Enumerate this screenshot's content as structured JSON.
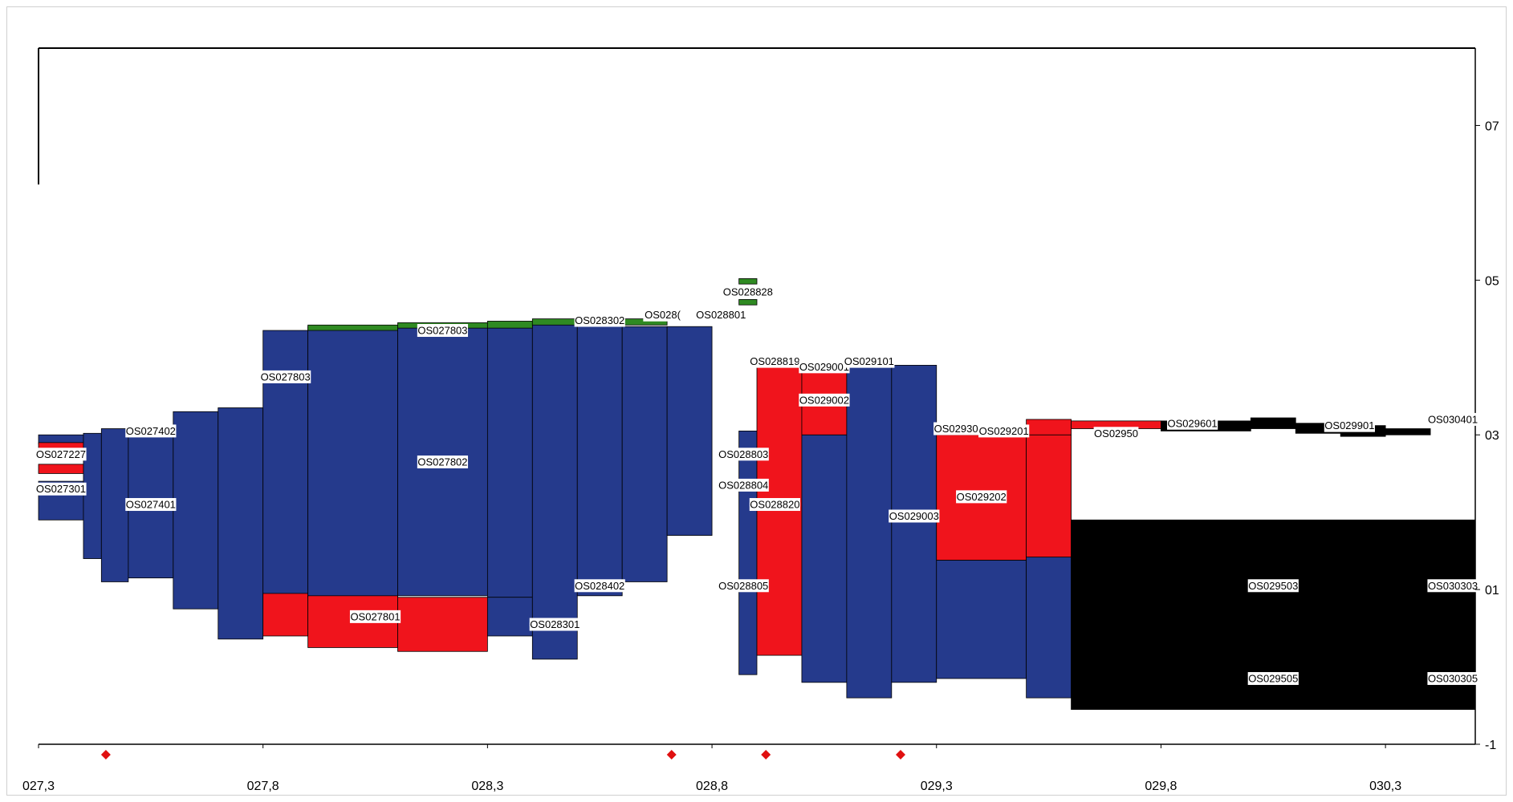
{
  "colors": {
    "blue": "#253a8c",
    "red": "#f0141c",
    "green": "#2f8a22",
    "black": "#000000",
    "marker": "#e01010"
  },
  "x_axis": {
    "min": 27.3,
    "max": 30.5,
    "ticks": [
      "027,3",
      "027,8",
      "028,3",
      "028,8",
      "029,3",
      "029,8",
      "030,3"
    ],
    "tick_values": [
      27.3,
      27.8,
      28.3,
      28.8,
      29.3,
      29.8,
      30.3
    ]
  },
  "y_axis": {
    "min": -1,
    "max": 8,
    "ticks": [
      "07",
      "05",
      "03",
      "01",
      "-1"
    ],
    "tick_values": [
      7,
      5,
      3,
      1,
      -1
    ]
  },
  "markers": [
    27.45,
    28.71,
    28.92,
    29.22
  ],
  "segments": [
    {
      "x1": 27.3,
      "x2": 27.4,
      "y1": 2.88,
      "y2": 3.0,
      "color": "blue"
    },
    {
      "x1": 27.3,
      "x2": 27.4,
      "y1": 2.7,
      "y2": 2.9,
      "color": "red"
    },
    {
      "x1": 27.3,
      "x2": 27.4,
      "y1": 2.5,
      "y2": 2.62,
      "color": "red"
    },
    {
      "x1": 27.3,
      "x2": 27.4,
      "y1": 1.9,
      "y2": 2.4,
      "color": "blue"
    },
    {
      "x1": 27.4,
      "x2": 27.44,
      "y1": 1.4,
      "y2": 3.02,
      "color": "blue"
    },
    {
      "x1": 27.44,
      "x2": 27.5,
      "y1": 1.1,
      "y2": 3.08,
      "color": "blue"
    },
    {
      "x1": 27.5,
      "x2": 27.6,
      "y1": 1.15,
      "y2": 3.08,
      "color": "blue"
    },
    {
      "x1": 27.6,
      "x2": 27.7,
      "y1": 0.75,
      "y2": 3.3,
      "color": "blue"
    },
    {
      "x1": 27.7,
      "x2": 27.8,
      "y1": 0.36,
      "y2": 3.35,
      "color": "blue"
    },
    {
      "x1": 27.8,
      "x2": 27.9,
      "y1": 0.75,
      "y2": 4.35,
      "color": "blue"
    },
    {
      "x1": 27.8,
      "x2": 27.9,
      "y1": 0.4,
      "y2": 0.95,
      "color": "red"
    },
    {
      "x1": 27.9,
      "x2": 28.1,
      "y1": 0.9,
      "y2": 4.4,
      "color": "blue"
    },
    {
      "x1": 27.9,
      "x2": 28.1,
      "y1": 0.25,
      "y2": 0.92,
      "color": "red"
    },
    {
      "x1": 28.1,
      "x2": 28.3,
      "y1": 0.92,
      "y2": 4.4,
      "color": "blue"
    },
    {
      "x1": 28.1,
      "x2": 28.3,
      "y1": 0.2,
      "y2": 0.9,
      "color": "red"
    },
    {
      "x1": 28.3,
      "x2": 28.4,
      "y1": 0.9,
      "y2": 4.45,
      "color": "blue"
    },
    {
      "x1": 28.3,
      "x2": 28.4,
      "y1": 0.4,
      "y2": 0.9,
      "color": "blue"
    },
    {
      "x1": 28.4,
      "x2": 28.5,
      "y1": 0.1,
      "y2": 4.45,
      "color": "blue"
    },
    {
      "x1": 28.5,
      "x2": 28.6,
      "y1": 0.92,
      "y2": 4.45,
      "color": "blue"
    },
    {
      "x1": 28.6,
      "x2": 28.7,
      "y1": 1.1,
      "y2": 4.4,
      "color": "blue"
    },
    {
      "x1": 28.7,
      "x2": 28.8,
      "y1": 1.7,
      "y2": 4.4,
      "color": "blue"
    },
    {
      "x1": 27.9,
      "x2": 28.1,
      "y1": 4.35,
      "y2": 4.42,
      "color": "green"
    },
    {
      "x1": 28.1,
      "x2": 28.3,
      "y1": 4.38,
      "y2": 4.45,
      "color": "green"
    },
    {
      "x1": 28.3,
      "x2": 28.4,
      "y1": 4.38,
      "y2": 4.47,
      "color": "green"
    },
    {
      "x1": 28.4,
      "x2": 28.7,
      "y1": 4.42,
      "y2": 4.5,
      "color": "green"
    },
    {
      "x1": 28.86,
      "x2": 28.9,
      "y1": 4.95,
      "y2": 5.02,
      "color": "green"
    },
    {
      "x1": 28.86,
      "x2": 28.9,
      "y1": 4.68,
      "y2": 4.75,
      "color": "green"
    },
    {
      "x1": 28.86,
      "x2": 28.9,
      "y1": -0.1,
      "y2": 3.05,
      "color": "blue"
    },
    {
      "x1": 28.9,
      "x2": 29.0,
      "y1": 0.15,
      "y2": 3.95,
      "color": "red"
    },
    {
      "x1": 29.0,
      "x2": 29.1,
      "y1": -0.2,
      "y2": 3.0,
      "color": "blue"
    },
    {
      "x1": 29.0,
      "x2": 29.1,
      "y1": 3.0,
      "y2": 3.95,
      "color": "red"
    },
    {
      "x1": 29.1,
      "x2": 29.2,
      "y1": -0.4,
      "y2": 3.9,
      "color": "blue"
    },
    {
      "x1": 29.2,
      "x2": 29.3,
      "y1": -0.2,
      "y2": 3.9,
      "color": "blue"
    },
    {
      "x1": 29.3,
      "x2": 29.5,
      "y1": -0.15,
      "y2": 1.38,
      "color": "blue"
    },
    {
      "x1": 29.3,
      "x2": 29.5,
      "y1": 1.38,
      "y2": 3.0,
      "color": "red"
    },
    {
      "x1": 29.5,
      "x2": 29.6,
      "y1": -0.4,
      "y2": 1.42,
      "color": "blue"
    },
    {
      "x1": 29.5,
      "x2": 29.6,
      "y1": 1.42,
      "y2": 3.0,
      "color": "red"
    },
    {
      "x1": 29.5,
      "x2": 29.6,
      "y1": 3.0,
      "y2": 3.2,
      "color": "red"
    },
    {
      "x1": 29.6,
      "x2": 29.8,
      "y1": 3.08,
      "y2": 3.18,
      "color": "red"
    },
    {
      "x1": 29.8,
      "x2": 30.0,
      "y1": 3.05,
      "y2": 3.18,
      "color": "black"
    },
    {
      "x1": 30.0,
      "x2": 30.1,
      "y1": 3.08,
      "y2": 3.22,
      "color": "black"
    },
    {
      "x1": 30.1,
      "x2": 30.2,
      "y1": 3.02,
      "y2": 3.15,
      "color": "black"
    },
    {
      "x1": 30.2,
      "x2": 30.3,
      "y1": 2.98,
      "y2": 3.12,
      "color": "black"
    },
    {
      "x1": 30.3,
      "x2": 30.4,
      "y1": 3.0,
      "y2": 3.08,
      "color": "black"
    },
    {
      "x1": 29.6,
      "x2": 30.5,
      "y1": -0.55,
      "y2": 1.9,
      "color": "black"
    }
  ],
  "labels": [
    {
      "text": "OS027227",
      "x": 27.35,
      "y": 2.75
    },
    {
      "text": "OS027402",
      "x": 27.55,
      "y": 3.05
    },
    {
      "text": "OS027301",
      "x": 27.35,
      "y": 2.3
    },
    {
      "text": "OS027401",
      "x": 27.55,
      "y": 2.1
    },
    {
      "text": "OS027803",
      "x": 27.85,
      "y": 3.75
    },
    {
      "text": "OS027803",
      "x": 28.2,
      "y": 4.35
    },
    {
      "text": "OS028302",
      "x": 28.55,
      "y": 4.48
    },
    {
      "text": "OS028(",
      "x": 28.69,
      "y": 4.55
    },
    {
      "text": "OS028801",
      "x": 28.82,
      "y": 4.55
    },
    {
      "text": "OS028828",
      "x": 28.88,
      "y": 4.85
    },
    {
      "text": "OS027802",
      "x": 28.2,
      "y": 2.65
    },
    {
      "text": "OS028402",
      "x": 28.55,
      "y": 1.05
    },
    {
      "text": "OS027801",
      "x": 28.05,
      "y": 0.65
    },
    {
      "text": "OS028301",
      "x": 28.45,
      "y": 0.55
    },
    {
      "text": "OS028819",
      "x": 28.94,
      "y": 3.95
    },
    {
      "text": "OS029001",
      "x": 29.05,
      "y": 3.88
    },
    {
      "text": "OS029101",
      "x": 29.15,
      "y": 3.95
    },
    {
      "text": "OS029002",
      "x": 29.05,
      "y": 3.45
    },
    {
      "text": "OS028803",
      "x": 28.87,
      "y": 2.75
    },
    {
      "text": "OS028804",
      "x": 28.87,
      "y": 2.35
    },
    {
      "text": "OS028820",
      "x": 28.94,
      "y": 2.1
    },
    {
      "text": "OS028805",
      "x": 28.87,
      "y": 1.05
    },
    {
      "text": "OS029003",
      "x": 29.25,
      "y": 1.95
    },
    {
      "text": "OS029302",
      "x": 29.35,
      "y": 3.08
    },
    {
      "text": "OS029201",
      "x": 29.45,
      "y": 3.05
    },
    {
      "text": "OS02950",
      "x": 29.7,
      "y": 3.02
    },
    {
      "text": "OS029601",
      "x": 29.87,
      "y": 3.15
    },
    {
      "text": "OS029901",
      "x": 30.22,
      "y": 3.12
    },
    {
      "text": "OS030401",
      "x": 30.45,
      "y": 3.2
    },
    {
      "text": "OS029202",
      "x": 29.4,
      "y": 2.2
    },
    {
      "text": "OS029503",
      "x": 30.05,
      "y": 1.05
    },
    {
      "text": "OS030303",
      "x": 30.45,
      "y": 1.05
    },
    {
      "text": "OS029505",
      "x": 30.05,
      "y": -0.15
    },
    {
      "text": "OS030305",
      "x": 30.45,
      "y": -0.15
    }
  ]
}
